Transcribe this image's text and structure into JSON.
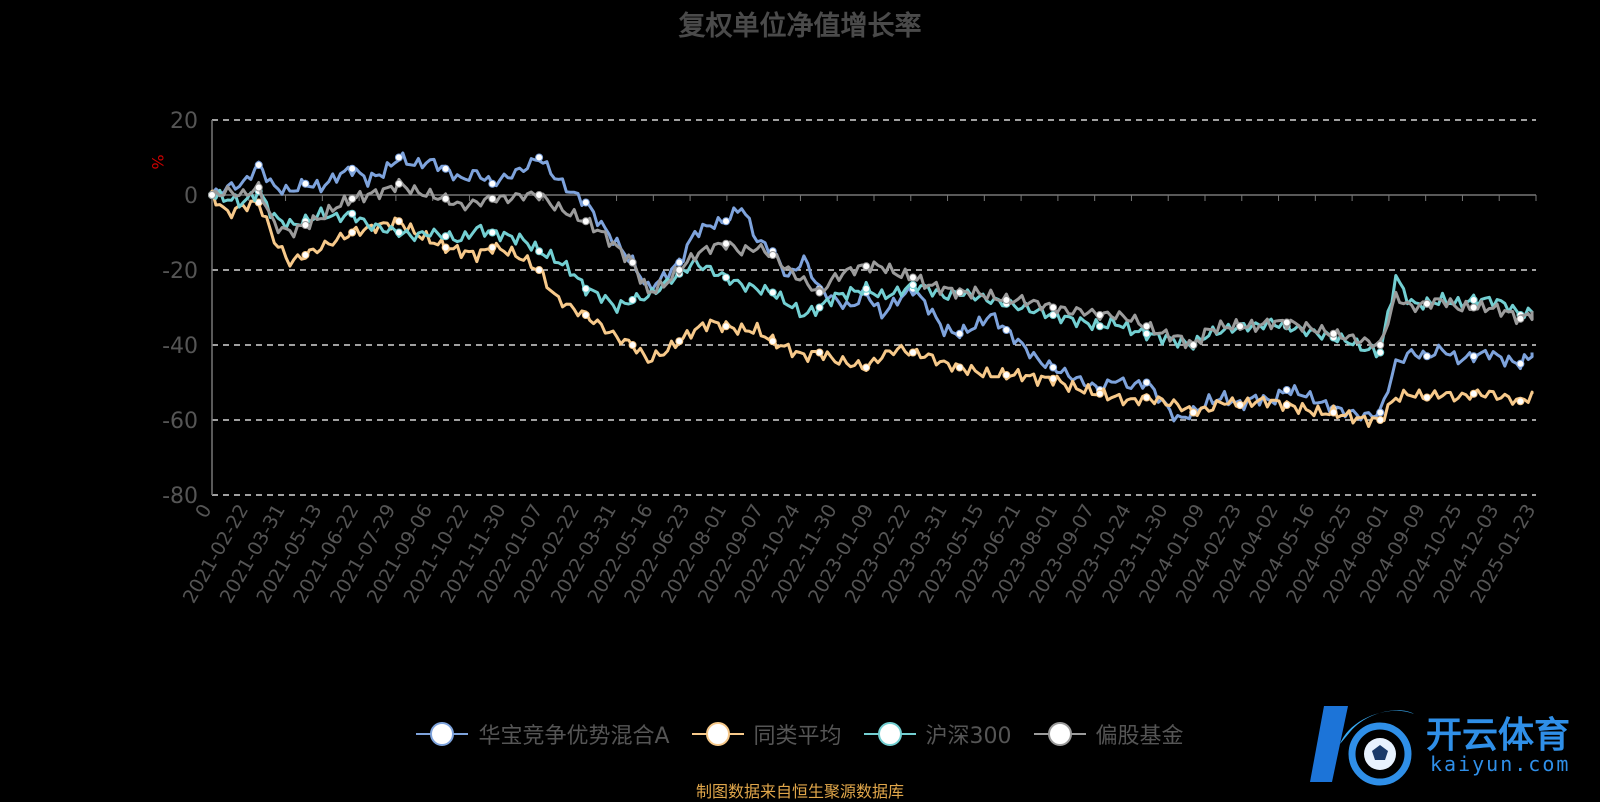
{
  "title": "复权单位净值增长率",
  "source_note": "制图数据来自恒生聚源数据库",
  "logo": {
    "name": "开云体育",
    "domain": "kaiyun.com"
  },
  "colors": {
    "background": "#000000",
    "grid": "#ffffff",
    "axis_text": "#555555",
    "ylabel": "#cc0000",
    "series": [
      "#7ea3dc",
      "#f7c98a",
      "#73cfd2",
      "#9b9b9b"
    ]
  },
  "chart_data": {
    "type": "line",
    "title": "复权单位净值增长率",
    "ylabel": "%",
    "ylim": [
      -80,
      20
    ],
    "yticks": [
      20,
      0,
      -20,
      -40,
      -60,
      -80
    ],
    "grid": true,
    "legend_position": "bottom",
    "xticklabels": [
      "0",
      "2021-02-22",
      "2021-03-31",
      "2021-05-13",
      "2021-06-22",
      "2021-07-29",
      "2021-09-06",
      "2021-10-22",
      "2021-11-30",
      "2022-01-07",
      "2022-02-22",
      "2022-03-31",
      "2022-05-16",
      "2022-06-23",
      "2022-08-01",
      "2022-09-07",
      "2022-10-24",
      "2022-11-30",
      "2023-01-09",
      "2023-02-22",
      "2023-03-31",
      "2023-05-15",
      "2023-06-21",
      "2023-08-01",
      "2023-09-07",
      "2023-10-24",
      "2023-11-30",
      "2024-01-09",
      "2024-02-23",
      "2024-04-02",
      "2024-05-16",
      "2024-06-25",
      "2024-08-01",
      "2024-09-09",
      "2024-10-25",
      "2024-12-03",
      "2025-01-23"
    ],
    "series": [
      {
        "name": "华宝竞争优势混合A",
        "values": [
          0,
          2,
          3,
          8,
          2,
          1,
          3,
          2,
          5,
          7,
          4,
          6,
          10,
          8,
          9,
          7,
          4,
          6,
          3,
          5,
          7,
          10,
          5,
          1,
          -2,
          -8,
          -13,
          -18,
          -25,
          -22,
          -18,
          -10,
          -8,
          -7,
          -3,
          -12,
          -15,
          -22,
          -17,
          -25,
          -28,
          -30,
          -26,
          -32,
          -28,
          -25,
          -30,
          -36,
          -37,
          -35,
          -32,
          -36,
          -40,
          -44,
          -46,
          -48,
          -50,
          -52,
          -49,
          -51,
          -50,
          -55,
          -60,
          -58,
          -55,
          -54,
          -56,
          -54,
          -55,
          -52,
          -53,
          -55,
          -57,
          -58,
          -59,
          -58,
          -45,
          -42,
          -43,
          -41,
          -44,
          -43,
          -42,
          -44,
          -45,
          -42
        ]
      },
      {
        "name": "同类平均",
        "values": [
          0,
          -5,
          -3,
          -2,
          -12,
          -18,
          -16,
          -14,
          -12,
          -10,
          -9,
          -8,
          -7,
          -10,
          -12,
          -14,
          -15,
          -16,
          -14,
          -15,
          -17,
          -20,
          -27,
          -30,
          -32,
          -35,
          -38,
          -40,
          -44,
          -42,
          -39,
          -36,
          -34,
          -35,
          -36,
          -36,
          -39,
          -41,
          -43,
          -42,
          -44,
          -45,
          -46,
          -43,
          -41,
          -42,
          -43,
          -45,
          -46,
          -47,
          -48,
          -48,
          -48,
          -49,
          -49,
          -51,
          -52,
          -53,
          -54,
          -55,
          -54,
          -55,
          -56,
          -58,
          -57,
          -55,
          -56,
          -55,
          -55,
          -56,
          -57,
          -58,
          -58,
          -59,
          -60,
          -60,
          -54,
          -53,
          -54,
          -53,
          -54,
          -53,
          -53,
          -54,
          -55,
          -53
        ]
      },
      {
        "name": "沪深300",
        "values": [
          0,
          -1,
          -2,
          1,
          -6,
          -8,
          -7,
          -5,
          -6,
          -5,
          -8,
          -9,
          -10,
          -11,
          -10,
          -11,
          -12,
          -9,
          -10,
          -11,
          -12,
          -15,
          -17,
          -20,
          -25,
          -27,
          -30,
          -28,
          -27,
          -24,
          -21,
          -18,
          -20,
          -22,
          -24,
          -25,
          -26,
          -29,
          -32,
          -30,
          -27,
          -26,
          -25,
          -27,
          -26,
          -24,
          -25,
          -27,
          -26,
          -27,
          -28,
          -29,
          -30,
          -31,
          -32,
          -33,
          -34,
          -35,
          -34,
          -36,
          -37,
          -38,
          -39,
          -40,
          -37,
          -36,
          -35,
          -35,
          -34,
          -35,
          -36,
          -37,
          -38,
          -39,
          -41,
          -42,
          -22,
          -29,
          -29,
          -28,
          -29,
          -28,
          -28,
          -29,
          -32,
          -31
        ]
      },
      {
        "name": "偏股基金",
        "values": [
          0,
          1,
          0,
          2,
          -8,
          -10,
          -8,
          -6,
          -3,
          -1,
          0,
          1,
          3,
          1,
          0,
          -1,
          -3,
          -2,
          -1,
          -1,
          0,
          0,
          -3,
          -5,
          -7,
          -10,
          -14,
          -18,
          -26,
          -24,
          -20,
          -16,
          -14,
          -13,
          -15,
          -14,
          -16,
          -20,
          -23,
          -26,
          -22,
          -20,
          -19,
          -19,
          -21,
          -22,
          -24,
          -25,
          -26,
          -26,
          -27,
          -28,
          -28,
          -29,
          -30,
          -31,
          -31,
          -32,
          -32,
          -33,
          -35,
          -37,
          -38,
          -40,
          -36,
          -35,
          -35,
          -35,
          -34,
          -34,
          -35,
          -36,
          -37,
          -38,
          -39,
          -40,
          -27,
          -30,
          -29,
          -28,
          -30,
          -30,
          -30,
          -31,
          -33,
          -31
        ]
      }
    ]
  }
}
